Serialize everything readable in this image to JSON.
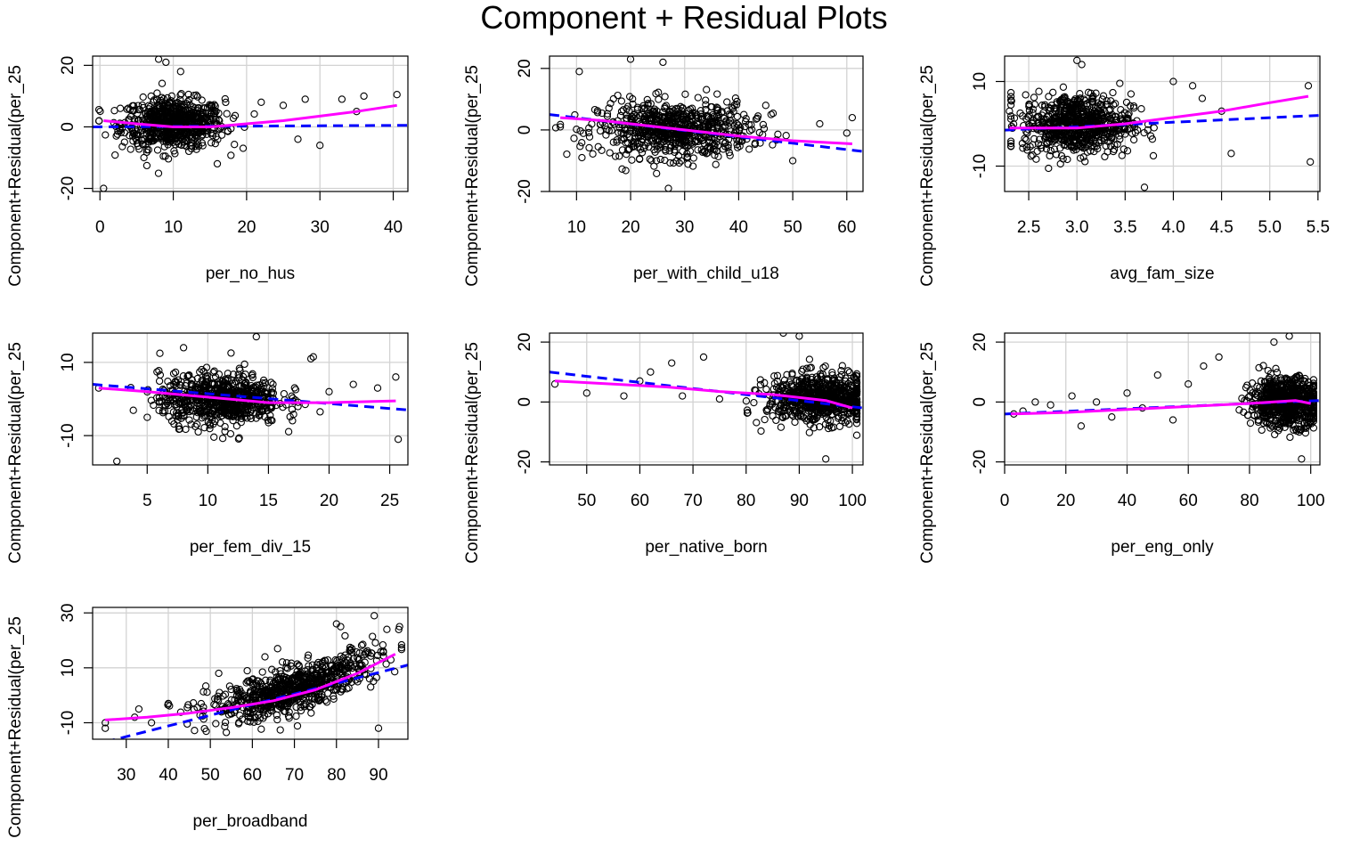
{
  "page": {
    "title": "Component + Residual Plots"
  },
  "colors": {
    "points": "#000000",
    "linear_fit": "#0000FF",
    "smooth_fit": "#FF00FF",
    "grid": "#D3D3D3"
  },
  "chart_data": [
    {
      "type": "scatter",
      "xlabel": "per_no_hus",
      "ylabel": "Component+Residual(per_25",
      "xticks": [
        0,
        10,
        20,
        30,
        40
      ],
      "yticks": [
        -20,
        0,
        20
      ],
      "ylim": [
        -21,
        23
      ],
      "xlim": [
        -1,
        42
      ],
      "cloud": {
        "center_x": 10,
        "spread_x": 3.5,
        "center_y": 1,
        "spread_y": 4,
        "n": 700
      },
      "outliers": [
        [
          0.5,
          -20
        ],
        [
          8,
          22
        ],
        [
          9,
          21
        ],
        [
          11,
          18
        ],
        [
          28,
          9
        ],
        [
          33,
          9
        ],
        [
          36,
          10
        ],
        [
          40.5,
          10.5
        ],
        [
          30,
          -6
        ],
        [
          35,
          5
        ],
        [
          22,
          8
        ],
        [
          25,
          7
        ],
        [
          27,
          -4
        ],
        [
          16,
          -12
        ],
        [
          6,
          -10
        ]
      ],
      "linear_fit": {
        "x": [
          -1,
          42
        ],
        "y": [
          0,
          0.5
        ]
      },
      "smooth_fit": {
        "x": [
          0.5,
          5,
          10,
          15,
          20,
          25,
          30,
          35,
          40.5
        ],
        "y": [
          2,
          1,
          0,
          0,
          1,
          2,
          3.5,
          5,
          7
        ]
      }
    },
    {
      "type": "scatter",
      "xlabel": "per_with_child_u18",
      "ylabel": "Component+Residual(per_25",
      "xticks": [
        10,
        20,
        30,
        40,
        50,
        60
      ],
      "yticks": [
        -20,
        0,
        20
      ],
      "ylim": [
        -20,
        24
      ],
      "xlim": [
        5,
        63
      ],
      "cloud": {
        "center_x": 28,
        "spread_x": 7,
        "center_y": 0,
        "spread_y": 4.5,
        "n": 700
      },
      "outliers": [
        [
          10.5,
          19
        ],
        [
          20,
          23
        ],
        [
          26,
          22
        ],
        [
          27,
          -19
        ],
        [
          11,
          -9
        ],
        [
          7,
          1
        ],
        [
          61,
          4
        ],
        [
          60,
          -1
        ],
        [
          55,
          2
        ],
        [
          50,
          -10
        ],
        [
          45,
          8
        ],
        [
          46,
          5
        ]
      ],
      "linear_fit": {
        "x": [
          5,
          63
        ],
        "y": [
          5,
          -7
        ]
      },
      "smooth_fit": {
        "x": [
          7,
          15,
          20,
          30,
          40,
          50,
          61
        ],
        "y": [
          4,
          3,
          2,
          0,
          -2,
          -3.5,
          -4.5
        ]
      }
    },
    {
      "type": "scatter",
      "xlabel": "avg_fam_size",
      "ylabel": "Component+Residual(per_25",
      "xticks": [
        2.5,
        3.0,
        3.5,
        4.0,
        4.5,
        5.0,
        5.5
      ],
      "yticks": [
        -10,
        10
      ],
      "ylim": [
        -16,
        16
      ],
      "xlim": [
        2.25,
        5.52
      ],
      "cloud": {
        "center_x": 3.0,
        "spread_x": 0.28,
        "center_y": 0,
        "spread_y": 3.5,
        "n": 700
      },
      "outliers": [
        [
          3.0,
          15
        ],
        [
          3.05,
          14
        ],
        [
          3.7,
          -15
        ],
        [
          5.4,
          9
        ],
        [
          5.42,
          -9
        ],
        [
          4.6,
          -7
        ],
        [
          4.5,
          3
        ],
        [
          4.3,
          6
        ],
        [
          2.3,
          3
        ],
        [
          4.0,
          10
        ],
        [
          4.2,
          9
        ]
      ],
      "linear_fit": {
        "x": [
          2.25,
          5.52
        ],
        "y": [
          -1.5,
          2
        ]
      },
      "smooth_fit": {
        "x": [
          2.3,
          2.8,
          3.0,
          3.5,
          4.0,
          4.5,
          5.0,
          5.4
        ],
        "y": [
          -1,
          -1,
          -1,
          0,
          1.5,
          3,
          5,
          6.5
        ]
      }
    },
    {
      "type": "scatter",
      "xlabel": "per_fem_div_15",
      "ylabel": "Component+Residual(per_25",
      "xticks": [
        5,
        10,
        15,
        20,
        25
      ],
      "yticks": [
        -10,
        10
      ],
      "ylim": [
        -18,
        18
      ],
      "xlim": [
        0.5,
        26.5
      ],
      "cloud": {
        "center_x": 11,
        "spread_x": 2.5,
        "center_y": 0,
        "spread_y": 3.5,
        "n": 700
      },
      "outliers": [
        [
          2.5,
          -17
        ],
        [
          18.5,
          11
        ],
        [
          18.7,
          11.5
        ],
        [
          14,
          17
        ],
        [
          8,
          14
        ],
        [
          25.5,
          6
        ],
        [
          25.7,
          -11
        ],
        [
          24,
          3
        ],
        [
          22,
          4
        ],
        [
          20,
          2
        ],
        [
          1,
          3
        ],
        [
          5,
          -5
        ]
      ],
      "linear_fit": {
        "x": [
          0.5,
          26.5
        ],
        "y": [
          4,
          -3
        ]
      },
      "smooth_fit": {
        "x": [
          1,
          5,
          10,
          15,
          20,
          25.5
        ],
        "y": [
          3,
          2,
          0.5,
          -1,
          -1,
          -0.5
        ]
      }
    },
    {
      "type": "scatter",
      "xlabel": "per_native_born",
      "ylabel": "Component+Residual(per_25",
      "xticks": [
        50,
        60,
        70,
        80,
        90,
        100
      ],
      "yticks": [
        -20,
        0,
        20
      ],
      "ylim": [
        -21,
        23
      ],
      "xlim": [
        43,
        102
      ],
      "cloud": {
        "center_x": 94,
        "spread_x": 5,
        "center_y": 1,
        "spread_y": 4,
        "n": 700
      },
      "outliers": [
        [
          44,
          6
        ],
        [
          50,
          3
        ],
        [
          57,
          2
        ],
        [
          62,
          10
        ],
        [
          66,
          13
        ],
        [
          72,
          15
        ],
        [
          87,
          23
        ],
        [
          90,
          22
        ],
        [
          95,
          -19
        ],
        [
          68,
          2
        ],
        [
          75,
          1
        ],
        [
          60,
          7
        ]
      ],
      "linear_fit": {
        "x": [
          43,
          102
        ],
        "y": [
          10,
          -2
        ]
      },
      "smooth_fit": {
        "x": [
          44,
          55,
          65,
          75,
          85,
          95,
          100
        ],
        "y": [
          7,
          6,
          5,
          3.5,
          2.5,
          0.5,
          -2
        ]
      }
    },
    {
      "type": "scatter",
      "xlabel": "per_eng_only",
      "ylabel": "Component+Residual(per_25",
      "xticks": [
        0,
        20,
        40,
        60,
        80,
        100
      ],
      "yticks": [
        -20,
        0,
        20
      ],
      "ylim": [
        -21,
        23
      ],
      "xlim": [
        0,
        103
      ],
      "cloud": {
        "center_x": 92,
        "spread_x": 6,
        "center_y": 0,
        "spread_y": 4,
        "n": 700
      },
      "outliers": [
        [
          3,
          -4
        ],
        [
          6,
          -3
        ],
        [
          10,
          0
        ],
        [
          15,
          -1
        ],
        [
          22,
          2
        ],
        [
          25,
          -8
        ],
        [
          30,
          0
        ],
        [
          35,
          -5
        ],
        [
          40,
          3
        ],
        [
          45,
          -2
        ],
        [
          50,
          9
        ],
        [
          55,
          -6
        ],
        [
          60,
          6
        ],
        [
          65,
          12
        ],
        [
          70,
          15
        ],
        [
          93,
          22
        ],
        [
          97,
          -19
        ],
        [
          88,
          20
        ]
      ],
      "linear_fit": {
        "x": [
          0,
          103
        ],
        "y": [
          -4,
          0.5
        ]
      },
      "smooth_fit": {
        "x": [
          2,
          20,
          40,
          60,
          80,
          95,
          100
        ],
        "y": [
          -4,
          -3.5,
          -2.5,
          -1.5,
          -0.5,
          0.5,
          -0.5
        ]
      }
    },
    {
      "type": "scatter",
      "xlabel": "per_broadband",
      "ylabel": "Component+Residual(per_25",
      "xticks": [
        30,
        40,
        50,
        60,
        70,
        80,
        90
      ],
      "yticks": [
        -10,
        10,
        30
      ],
      "ylim": [
        -16,
        32
      ],
      "xlim": [
        22,
        97
      ],
      "cloud": {
        "center_x": 70,
        "spread_x": 10,
        "center_y": 0,
        "spread_y": 4,
        "n": 750,
        "trend": [
          [
            25,
            -10
          ],
          [
            40,
            -7
          ],
          [
            50,
            -5
          ],
          [
            60,
            -2
          ],
          [
            70,
            2
          ],
          [
            80,
            7
          ],
          [
            90,
            14
          ],
          [
            94,
            17
          ]
        ]
      },
      "outliers": [
        [
          25,
          -10
        ],
        [
          25,
          -12
        ],
        [
          32,
          -8
        ],
        [
          33,
          -5
        ],
        [
          36,
          -10
        ],
        [
          40,
          -3
        ],
        [
          80,
          26
        ],
        [
          81,
          25
        ],
        [
          89,
          29
        ],
        [
          92,
          24
        ],
        [
          95,
          25
        ],
        [
          90,
          -12
        ],
        [
          63,
          14
        ],
        [
          52,
          8
        ],
        [
          66,
          17
        ]
      ],
      "linear_fit": {
        "x": [
          25,
          97
        ],
        "y": [
          -17,
          11
        ]
      },
      "smooth_fit": {
        "x": [
          25,
          35,
          45,
          55,
          65,
          75,
          85,
          94
        ],
        "y": [
          -9,
          -8,
          -6.5,
          -4.5,
          -2,
          2,
          8,
          15
        ]
      }
    }
  ]
}
